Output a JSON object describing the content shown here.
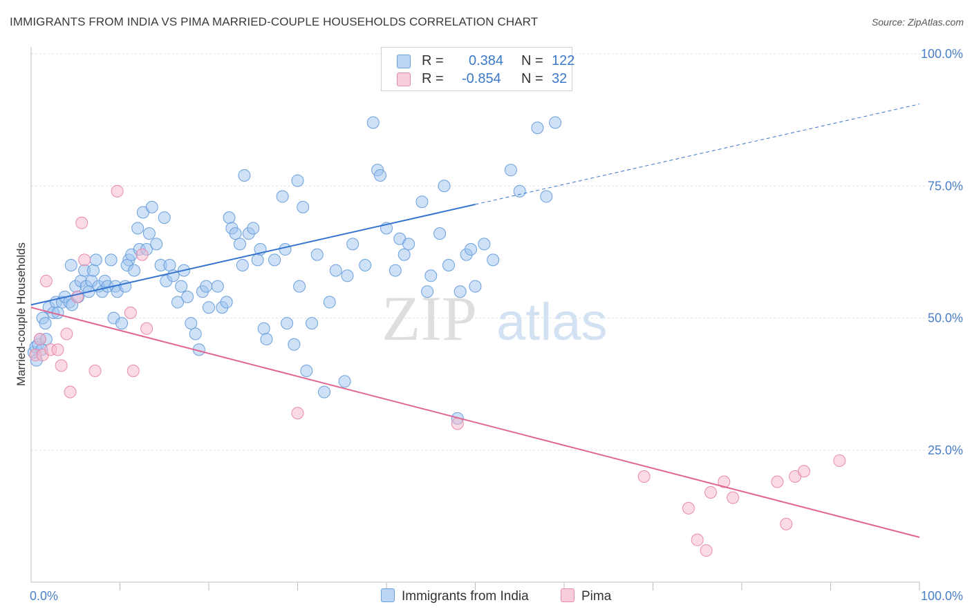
{
  "title": "IMMIGRANTS FROM INDIA VS PIMA MARRIED-COUPLE HOUSEHOLDS CORRELATION CHART",
  "source": "Source: ZipAtlas.com",
  "watermark": {
    "zip": "ZIP",
    "atlas": "atlas"
  },
  "legend": [
    {
      "r_label": "R =",
      "r_value": "0.384",
      "n_label": "N =",
      "n_value": "122"
    },
    {
      "r_label": "R =",
      "r_value": "-0.854",
      "n_label": "N =",
      "n_value": "32"
    }
  ],
  "bottom_legend": {
    "india": "Immigrants from India",
    "pima": "Pima"
  },
  "colors": {
    "india_fill": "#9ec3ef",
    "india_stroke": "#6a9fdc",
    "india_line": "#3474d0",
    "pima_fill": "#f5b8cb",
    "pima_stroke": "#e88aa9",
    "pima_line": "#e06592",
    "tick_label": "#4a7fc8",
    "grid": "#e2e2e2"
  },
  "chart_data": {
    "type": "scatter",
    "title": "IMMIGRANTS FROM INDIA VS PIMA MARRIED-COUPLE HOUSEHOLDS CORRELATION CHART",
    "xlabel": "",
    "ylabel": "Married-couple Households",
    "xlim": [
      0,
      100
    ],
    "ylim": [
      0,
      100
    ],
    "x_tick_labels": [
      "0.0%",
      "100.0%"
    ],
    "y_ticks": [
      25,
      50,
      75,
      100
    ],
    "y_tick_labels": [
      "25.0%",
      "50.0%",
      "75.0%",
      "100.0%"
    ],
    "grid": true,
    "legend_position": "top-center",
    "series": [
      {
        "name": "Immigrants from India",
        "r": 0.384,
        "n": 122,
        "trend": {
          "x": [
            0,
            50
          ],
          "y": [
            52.5,
            71.5
          ],
          "extended_to": [
            100,
            90.5
          ]
        },
        "points": [
          [
            0.3,
            43.5
          ],
          [
            0.5,
            44.5
          ],
          [
            0.6,
            42
          ],
          [
            0.8,
            45
          ],
          [
            1,
            46
          ],
          [
            1.2,
            44
          ],
          [
            1.3,
            50
          ],
          [
            1.6,
            49
          ],
          [
            1.7,
            46
          ],
          [
            2,
            52
          ],
          [
            2.5,
            51
          ],
          [
            2.8,
            53
          ],
          [
            3,
            51
          ],
          [
            3.5,
            53
          ],
          [
            3.8,
            54
          ],
          [
            4.3,
            53
          ],
          [
            4.6,
            52.5
          ],
          [
            4.5,
            60
          ],
          [
            5,
            56
          ],
          [
            5.3,
            54
          ],
          [
            5.6,
            57
          ],
          [
            6,
            59
          ],
          [
            6.2,
            56
          ],
          [
            6.5,
            55
          ],
          [
            6.8,
            57
          ],
          [
            7,
            59
          ],
          [
            7.3,
            61
          ],
          [
            7.6,
            56
          ],
          [
            8,
            55
          ],
          [
            8.3,
            57
          ],
          [
            8.6,
            56
          ],
          [
            9,
            61
          ],
          [
            9.5,
            56
          ],
          [
            9.7,
            55
          ],
          [
            9.3,
            50
          ],
          [
            10.2,
            49
          ],
          [
            10.6,
            56
          ],
          [
            11,
            61
          ],
          [
            10.8,
            60
          ],
          [
            11.3,
            62
          ],
          [
            11.6,
            59
          ],
          [
            12,
            67
          ],
          [
            12.2,
            63
          ],
          [
            12.6,
            70
          ],
          [
            13,
            63
          ],
          [
            13.3,
            66
          ],
          [
            13.6,
            71
          ],
          [
            14.1,
            64
          ],
          [
            14.6,
            60
          ],
          [
            15,
            69
          ],
          [
            15.2,
            57
          ],
          [
            15.6,
            60
          ],
          [
            16,
            58
          ],
          [
            16.5,
            53
          ],
          [
            16.9,
            56
          ],
          [
            17.2,
            59
          ],
          [
            17.6,
            54
          ],
          [
            18,
            49
          ],
          [
            18.5,
            47
          ],
          [
            18.9,
            44
          ],
          [
            19.3,
            55
          ],
          [
            19.7,
            56
          ],
          [
            20,
            52
          ],
          [
            21,
            56
          ],
          [
            21.5,
            52
          ],
          [
            22,
            53
          ],
          [
            22.3,
            69
          ],
          [
            22.6,
            67
          ],
          [
            23,
            66
          ],
          [
            23.5,
            64
          ],
          [
            23.8,
            60
          ],
          [
            24,
            77
          ],
          [
            24.5,
            66
          ],
          [
            25,
            67
          ],
          [
            25.5,
            61
          ],
          [
            25.8,
            63
          ],
          [
            26.2,
            48
          ],
          [
            26.5,
            46
          ],
          [
            27.4,
            61
          ],
          [
            28.3,
            73
          ],
          [
            28.6,
            63
          ],
          [
            28.8,
            49
          ],
          [
            29.6,
            45
          ],
          [
            30,
            76
          ],
          [
            30.2,
            56
          ],
          [
            30.6,
            71
          ],
          [
            31,
            40
          ],
          [
            31.6,
            49
          ],
          [
            32.2,
            62
          ],
          [
            33,
            36
          ],
          [
            33.6,
            53
          ],
          [
            34.3,
            59
          ],
          [
            35.3,
            38
          ],
          [
            35.6,
            58
          ],
          [
            36.2,
            64
          ],
          [
            37.6,
            60
          ],
          [
            38.5,
            87
          ],
          [
            39,
            78
          ],
          [
            39.3,
            77
          ],
          [
            40,
            67
          ],
          [
            41,
            59
          ],
          [
            41.5,
            65
          ],
          [
            42,
            62
          ],
          [
            42.5,
            64
          ],
          [
            44,
            72
          ],
          [
            44.6,
            55
          ],
          [
            45,
            58
          ],
          [
            46,
            66
          ],
          [
            46.5,
            75
          ],
          [
            47,
            60
          ],
          [
            48,
            31
          ],
          [
            48.3,
            55
          ],
          [
            49,
            62
          ],
          [
            49.5,
            63
          ],
          [
            50,
            56
          ],
          [
            51,
            64
          ],
          [
            52,
            61
          ],
          [
            54,
            78
          ],
          [
            55,
            74
          ],
          [
            57,
            86
          ],
          [
            58,
            73
          ],
          [
            59,
            87
          ]
        ]
      },
      {
        "name": "Pima",
        "r": -0.854,
        "n": 32,
        "trend": {
          "x": [
            0,
            100
          ],
          "y": [
            52,
            8.5
          ]
        },
        "points": [
          [
            0.5,
            43
          ],
          [
            1,
            46
          ],
          [
            1.3,
            43
          ],
          [
            1.7,
            57
          ],
          [
            2.2,
            44
          ],
          [
            3,
            44
          ],
          [
            3.4,
            41
          ],
          [
            4,
            47
          ],
          [
            4.4,
            36
          ],
          [
            5.2,
            54
          ],
          [
            5.7,
            68
          ],
          [
            6,
            61
          ],
          [
            7.2,
            40
          ],
          [
            9.7,
            74
          ],
          [
            11.2,
            51
          ],
          [
            11.5,
            40
          ],
          [
            12.5,
            62
          ],
          [
            13,
            48
          ],
          [
            30,
            32
          ],
          [
            48,
            30
          ],
          [
            69,
            20
          ],
          [
            74,
            14
          ],
          [
            75,
            8
          ],
          [
            76,
            6
          ],
          [
            76.5,
            17
          ],
          [
            78,
            19
          ],
          [
            79,
            16
          ],
          [
            84,
            19
          ],
          [
            85,
            11
          ],
          [
            86,
            20
          ],
          [
            87,
            21
          ],
          [
            91,
            23
          ]
        ]
      }
    ]
  }
}
